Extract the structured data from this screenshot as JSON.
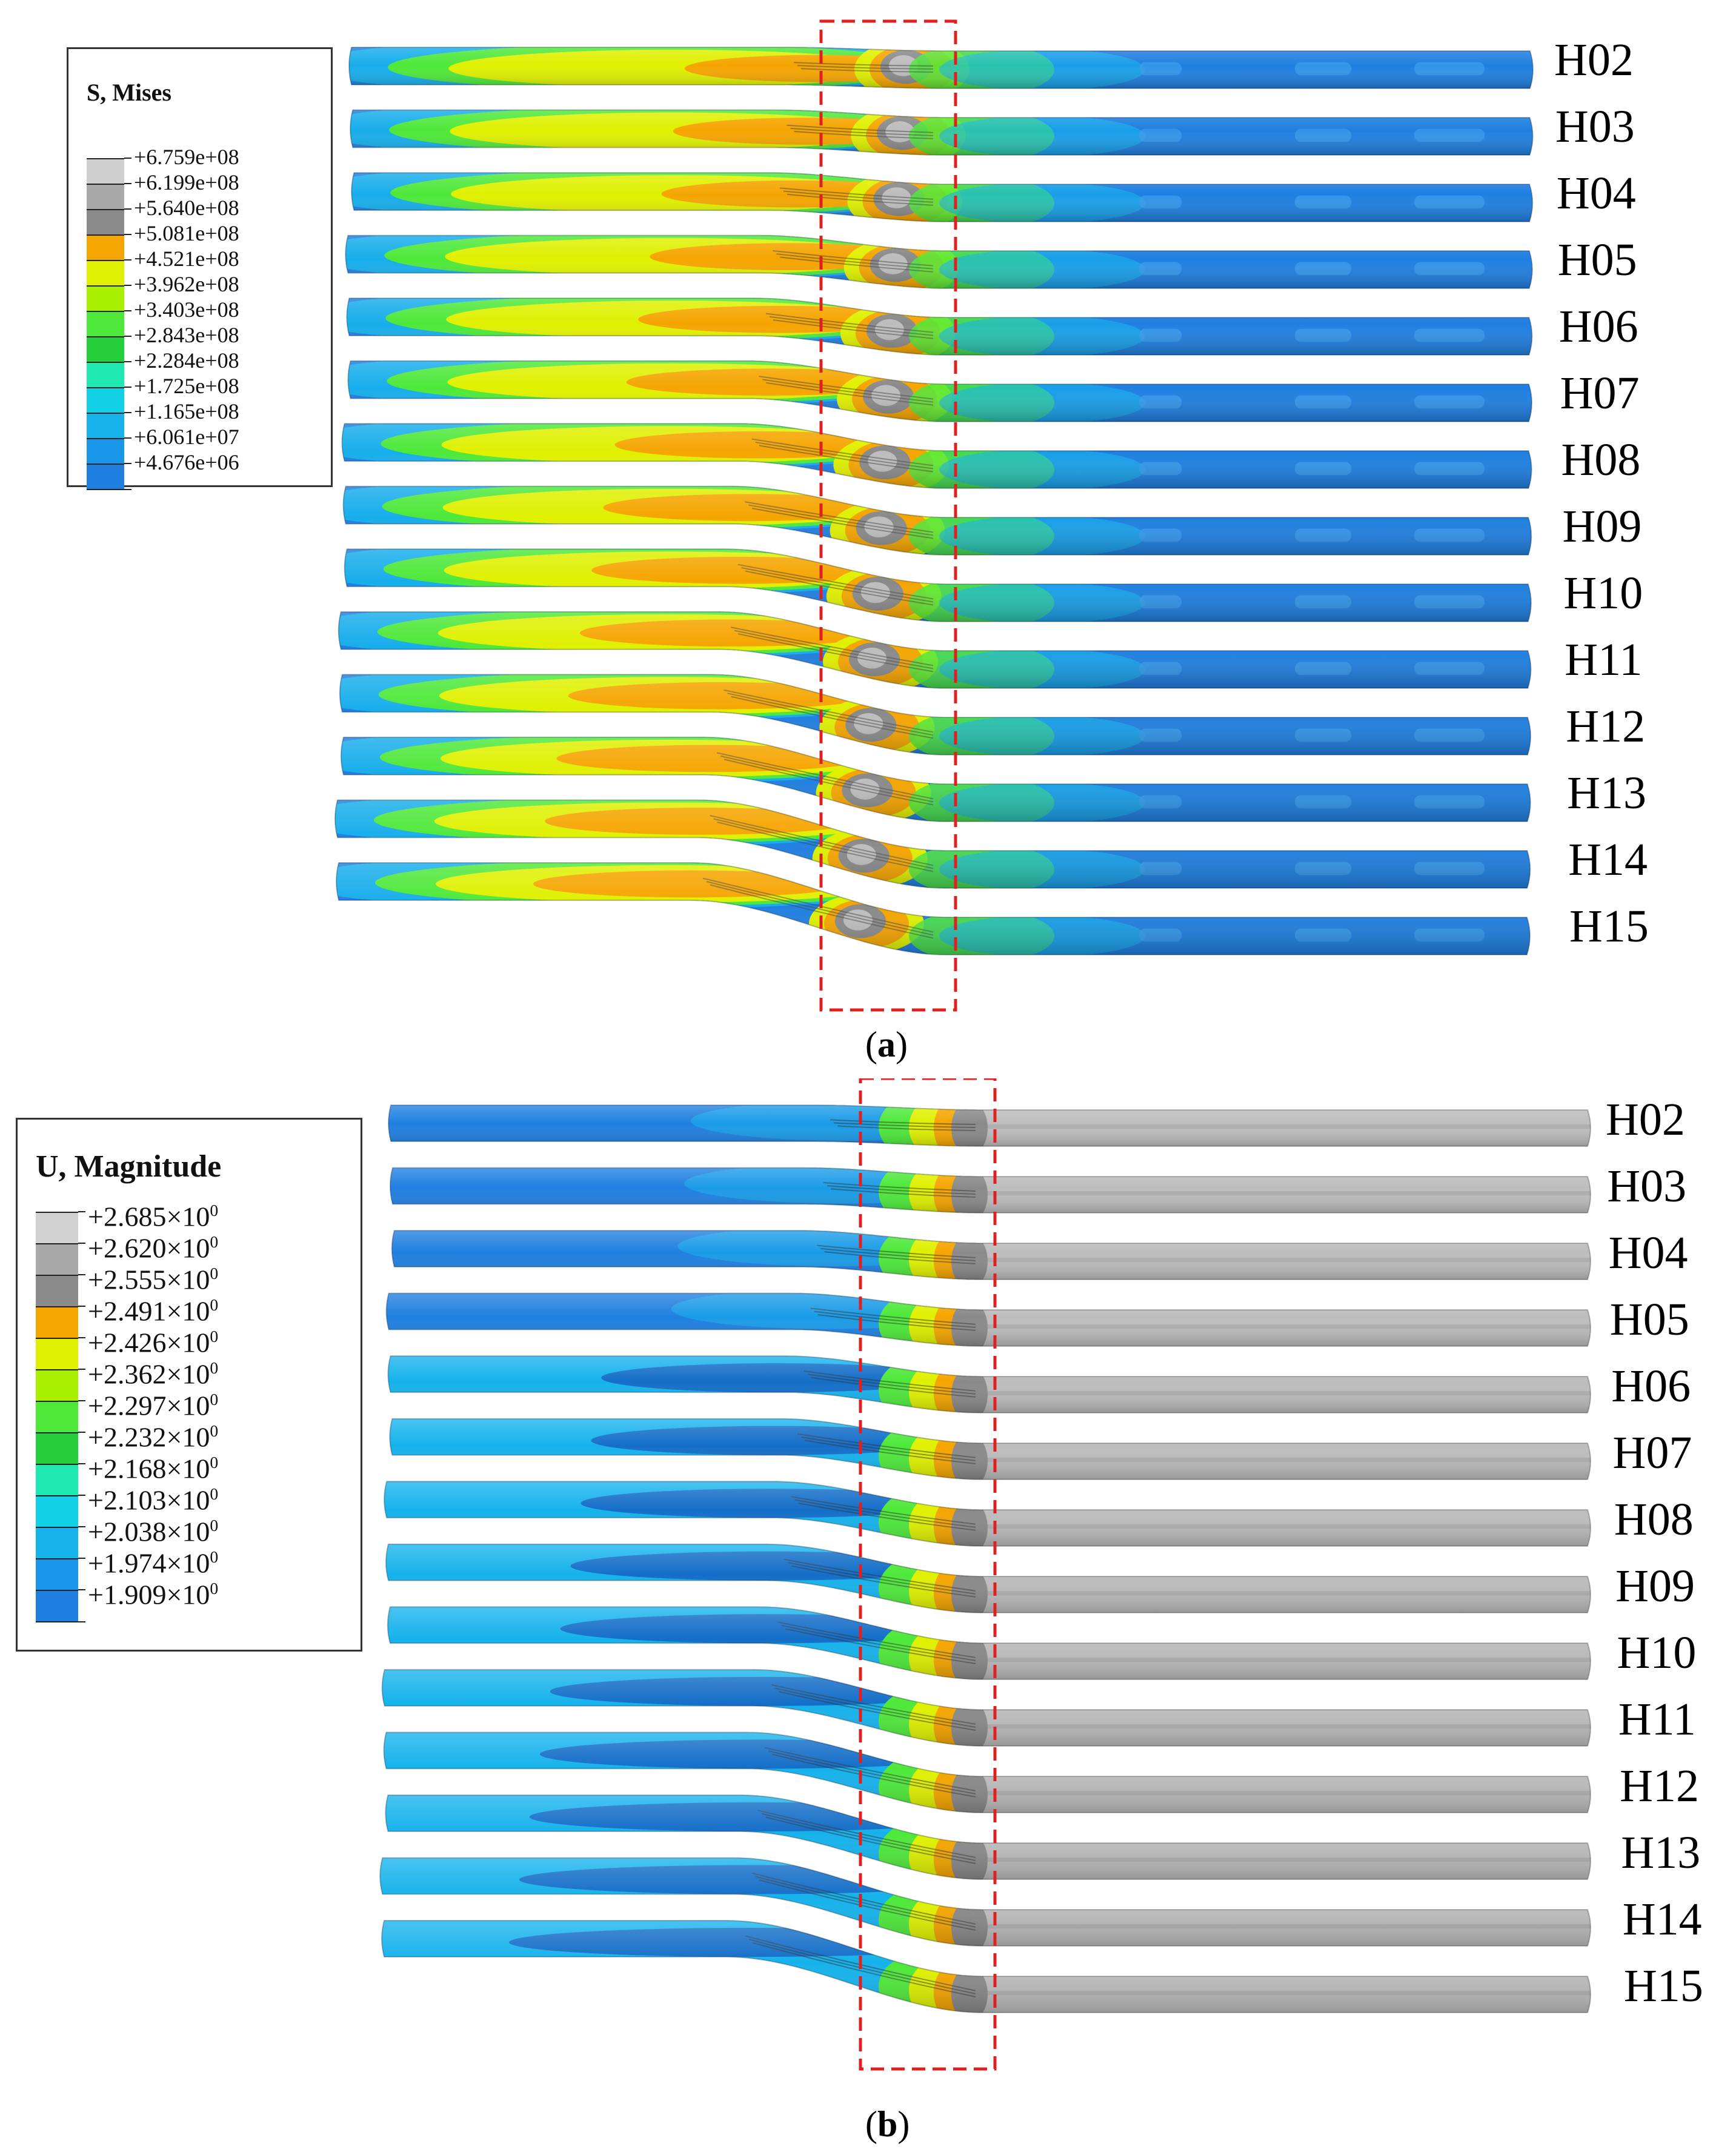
{
  "panel_a": {
    "caption_open": "(",
    "caption_letter": "a",
    "caption_close": ")",
    "legend": {
      "title": "S, Mises",
      "labels": [
        "+6.759e+08",
        "+6.199e+08",
        "+5.640e+08",
        "+5.081e+08",
        "+4.521e+08",
        "+3.962e+08",
        "+3.403e+08",
        "+2.843e+08",
        "+2.284e+08",
        "+1.725e+08",
        "+1.165e+08",
        "+6.061e+07",
        "+4.676e+06"
      ],
      "colors": [
        "#cfcfcf",
        "#a9a9a9",
        "#8a8a8a",
        "#f5a500",
        "#dff000",
        "#a8f000",
        "#4ee83a",
        "#25cf3c",
        "#1fe8b0",
        "#12d0e6",
        "#16b2ec",
        "#1a96e8",
        "#1f7fe0"
      ]
    },
    "rows": [
      "H02",
      "H03",
      "H04",
      "H05",
      "H06",
      "H07",
      "H08",
      "H09",
      "H10",
      "H11",
      "H12",
      "H13",
      "H14",
      "H15"
    ]
  },
  "panel_b": {
    "caption_open": "(",
    "caption_letter": "b",
    "caption_close": ")",
    "legend": {
      "title": "U, Magnitude",
      "labels": [
        "+2.685×10",
        "+2.620×10",
        "+2.555×10",
        "+2.491×10",
        "+2.426×10",
        "+2.362×10",
        "+2.297×10",
        "+2.232×10",
        "+2.168×10",
        "+2.103×10",
        "+2.038×10",
        "+1.974×10",
        "+1.909×10"
      ],
      "exponent": "0",
      "colors": [
        "#d2d2d2",
        "#a9a9a9",
        "#8a8a8a",
        "#f5a500",
        "#dff000",
        "#a8f000",
        "#4ee83a",
        "#25cf3c",
        "#1fe8b0",
        "#12d0e6",
        "#16b2ec",
        "#1a96e8",
        "#1f7fe0"
      ]
    },
    "rows": [
      "H02",
      "H03",
      "H04",
      "H05",
      "H06",
      "H07",
      "H08",
      "H09",
      "H10",
      "H11",
      "H12",
      "H13",
      "H14",
      "H15"
    ]
  },
  "colors": {
    "pipe_blue": "#1f7fe0",
    "pipe_dark_blue": "#1466c4",
    "pipe_cyan": "#16b2ec",
    "pipe_green": "#4ee83a",
    "pipe_yellow": "#dff000",
    "pipe_orange": "#f5a500",
    "pipe_gray": "#bdbdbd",
    "pipe_dark_gray": "#8a8a8a",
    "dashed_box": "#e02020"
  }
}
